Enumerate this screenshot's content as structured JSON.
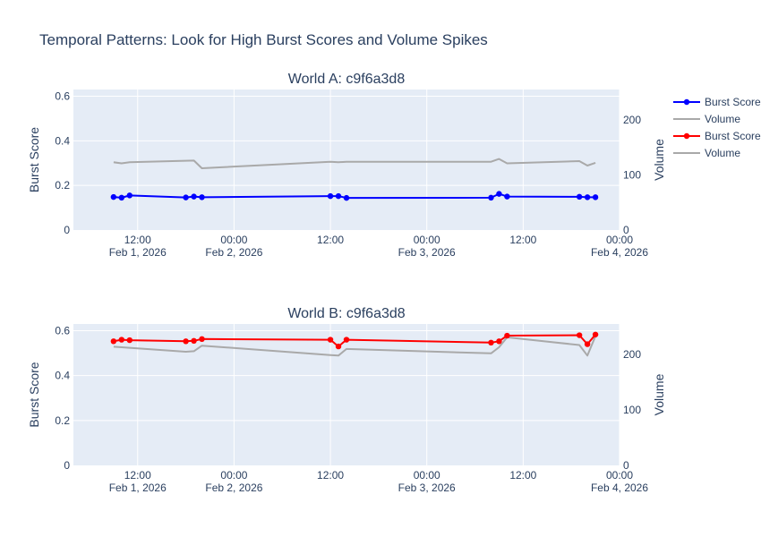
{
  "title": "Temporal Patterns: Look for High Burst Scores and Volume Spikes",
  "colors": {
    "burst_a": "#0000ff",
    "burst_b": "#ff0000",
    "volume": "#a9a9a9",
    "plot_bg": "#e5ecf6",
    "text": "#2a3f5f"
  },
  "legend": [
    {
      "label": "Burst Score",
      "color": "#0000ff",
      "marker": true
    },
    {
      "label": "Volume",
      "color": "#a9a9a9",
      "marker": false
    },
    {
      "label": "Burst Score",
      "color": "#ff0000",
      "marker": true
    },
    {
      "label": "Volume",
      "color": "#a9a9a9",
      "marker": false
    }
  ],
  "chart_data": [
    {
      "type": "line",
      "title": "World A: c9f6a3d8",
      "ylabel": "Burst Score",
      "y2label": "Volume",
      "xlim": [
        "2026-02-01 04:00",
        "2026-02-04 00:00"
      ],
      "ylim": [
        0,
        0.63
      ],
      "y2lim": [
        0,
        255
      ],
      "xticks": [
        {
          "value": "2026-02-01 12:00",
          "label": "12:00",
          "sublabel": "Feb 1, 2026"
        },
        {
          "value": "2026-02-02 00:00",
          "label": "00:00",
          "sublabel": "Feb 2, 2026"
        },
        {
          "value": "2026-02-02 12:00",
          "label": "12:00",
          "sublabel": ""
        },
        {
          "value": "2026-02-03 00:00",
          "label": "00:00",
          "sublabel": "Feb 3, 2026"
        },
        {
          "value": "2026-02-03 12:00",
          "label": "12:00",
          "sublabel": ""
        },
        {
          "value": "2026-02-04 00:00",
          "label": "00:00",
          "sublabel": "Feb 4, 2026"
        }
      ],
      "yticks": [
        {
          "value": 0,
          "label": "0"
        },
        {
          "value": 0.2,
          "label": "0.2"
        },
        {
          "value": 0.4,
          "label": "0.4"
        },
        {
          "value": 0.6,
          "label": "0.6"
        }
      ],
      "y2ticks": [
        {
          "value": 0,
          "label": "0"
        },
        {
          "value": 100,
          "label": "100"
        },
        {
          "value": 200,
          "label": "200"
        }
      ],
      "series": [
        {
          "name": "Burst Score",
          "axis": "y",
          "color": "#0000ff",
          "markers": true,
          "x": [
            "2026-02-01 09:00",
            "2026-02-01 10:00",
            "2026-02-01 11:00",
            "2026-02-01 18:00",
            "2026-02-01 19:00",
            "2026-02-01 20:00",
            "2026-02-02 12:00",
            "2026-02-02 13:00",
            "2026-02-02 14:00",
            "2026-02-03 08:00",
            "2026-02-03 09:00",
            "2026-02-03 10:00",
            "2026-02-03 19:00",
            "2026-02-03 20:00",
            "2026-02-03 21:00"
          ],
          "y": [
            0.148,
            0.145,
            0.155,
            0.146,
            0.15,
            0.147,
            0.152,
            0.152,
            0.144,
            0.145,
            0.162,
            0.15,
            0.149,
            0.147,
            0.147
          ]
        },
        {
          "name": "Volume",
          "axis": "y2",
          "color": "#a9a9a9",
          "markers": false,
          "x": [
            "2026-02-01 09:00",
            "2026-02-01 10:00",
            "2026-02-01 11:00",
            "2026-02-01 19:00",
            "2026-02-01 20:00",
            "2026-02-02 12:00",
            "2026-02-02 13:00",
            "2026-02-02 14:00",
            "2026-02-03 08:00",
            "2026-02-03 09:00",
            "2026-02-03 10:00",
            "2026-02-03 19:00",
            "2026-02-03 20:00",
            "2026-02-03 21:00"
          ],
          "y": [
            123,
            121,
            123,
            126,
            112,
            124,
            123,
            124,
            124,
            129,
            121,
            125,
            117,
            122
          ]
        }
      ]
    },
    {
      "type": "line",
      "title": "World B: c9f6a3d8",
      "ylabel": "Burst Score",
      "y2label": "Volume",
      "xlim": [
        "2026-02-01 04:00",
        "2026-02-04 00:00"
      ],
      "ylim": [
        0,
        0.63
      ],
      "y2lim": [
        0,
        255
      ],
      "xticks": [
        {
          "value": "2026-02-01 12:00",
          "label": "12:00",
          "sublabel": "Feb 1, 2026"
        },
        {
          "value": "2026-02-02 00:00",
          "label": "00:00",
          "sublabel": "Feb 2, 2026"
        },
        {
          "value": "2026-02-02 12:00",
          "label": "12:00",
          "sublabel": ""
        },
        {
          "value": "2026-02-03 00:00",
          "label": "00:00",
          "sublabel": "Feb 3, 2026"
        },
        {
          "value": "2026-02-03 12:00",
          "label": "12:00",
          "sublabel": ""
        },
        {
          "value": "2026-02-04 00:00",
          "label": "00:00",
          "sublabel": "Feb 4, 2026"
        }
      ],
      "yticks": [
        {
          "value": 0,
          "label": "0"
        },
        {
          "value": 0.2,
          "label": "0.2"
        },
        {
          "value": 0.4,
          "label": "0.4"
        },
        {
          "value": 0.6,
          "label": "0.6"
        }
      ],
      "y2ticks": [
        {
          "value": 0,
          "label": "0"
        },
        {
          "value": 100,
          "label": "100"
        },
        {
          "value": 200,
          "label": "200"
        }
      ],
      "series": [
        {
          "name": "Burst Score",
          "axis": "y",
          "color": "#ff0000",
          "markers": true,
          "x": [
            "2026-02-01 09:00",
            "2026-02-01 10:00",
            "2026-02-01 11:00",
            "2026-02-01 18:00",
            "2026-02-01 19:00",
            "2026-02-01 20:00",
            "2026-02-02 12:00",
            "2026-02-02 13:00",
            "2026-02-02 14:00",
            "2026-02-03 08:00",
            "2026-02-03 09:00",
            "2026-02-03 10:00",
            "2026-02-03 19:00",
            "2026-02-03 20:00",
            "2026-02-03 21:00"
          ],
          "y": [
            0.553,
            0.56,
            0.558,
            0.553,
            0.555,
            0.563,
            0.56,
            0.53,
            0.56,
            0.547,
            0.553,
            0.578,
            0.58,
            0.54,
            0.583
          ]
        },
        {
          "name": "Volume",
          "axis": "y2",
          "color": "#a9a9a9",
          "markers": false,
          "x": [
            "2026-02-01 09:00",
            "2026-02-01 11:00",
            "2026-02-01 18:00",
            "2026-02-01 19:00",
            "2026-02-01 20:00",
            "2026-02-02 12:00",
            "2026-02-02 13:00",
            "2026-02-02 14:00",
            "2026-02-03 08:00",
            "2026-02-03 09:00",
            "2026-02-03 10:00",
            "2026-02-03 19:00",
            "2026-02-03 20:00",
            "2026-02-03 21:00"
          ],
          "y": [
            214,
            212,
            205,
            206,
            216,
            199,
            198,
            210,
            202,
            213,
            231,
            217,
            198,
            233
          ]
        }
      ]
    }
  ]
}
